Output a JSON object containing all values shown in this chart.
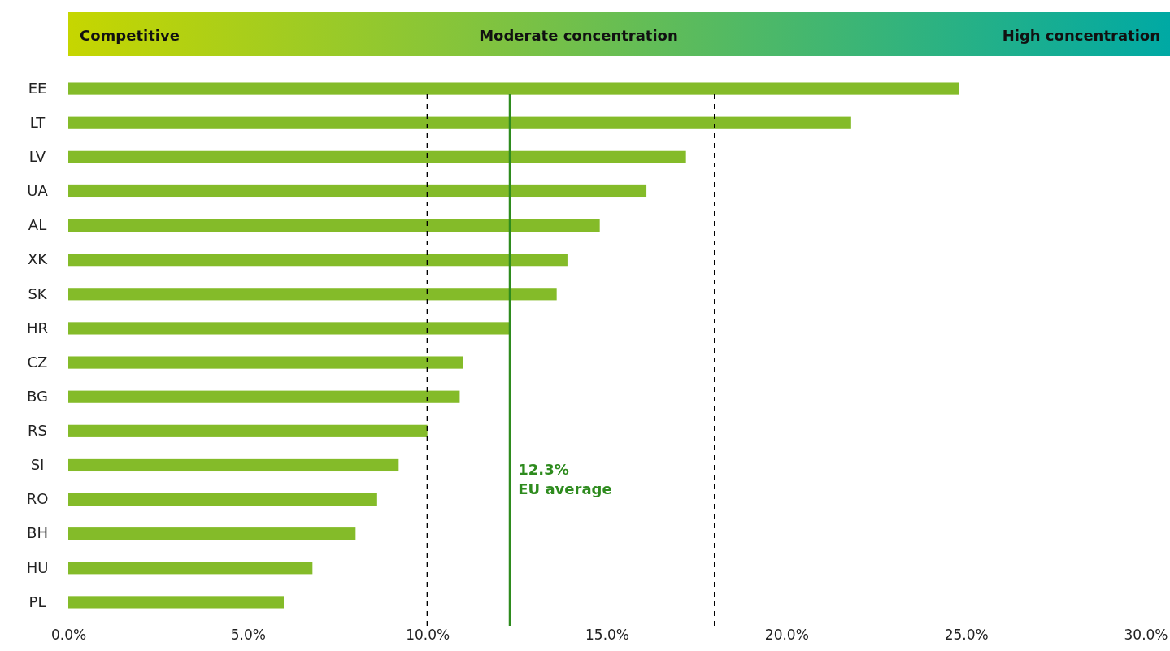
{
  "chart_data": {
    "type": "bar",
    "orientation": "horizontal",
    "categories": [
      "EE",
      "LT",
      "LV",
      "UA",
      "AL",
      "XK",
      "SK",
      "HR",
      "CZ",
      "BG",
      "RS",
      "SI",
      "RO",
      "BH",
      "HU",
      "PL"
    ],
    "values": [
      24.8,
      21.8,
      17.2,
      16.1,
      14.8,
      13.9,
      13.6,
      12.3,
      11.0,
      10.9,
      10.0,
      9.2,
      8.6,
      8.0,
      6.8,
      6.0
    ],
    "color": "#84bb29",
    "xlim": [
      0,
      30
    ],
    "xticks": [
      {
        "value": 0,
        "label": "0.0%"
      },
      {
        "value": 5,
        "label": "5.0%"
      },
      {
        "value": 10,
        "label": "10.0%"
      },
      {
        "value": 15,
        "label": "15.0%"
      },
      {
        "value": 20,
        "label": "20.0%"
      },
      {
        "value": 25,
        "label": "25.0%"
      },
      {
        "value": 30,
        "label": "30.0%"
      }
    ],
    "ref_lines": [
      {
        "axis": "x",
        "value": 10,
        "color": "#000000",
        "line_style": "dashed"
      },
      {
        "axis": "x",
        "value": 18,
        "color": "#000000",
        "line_style": "dashed"
      },
      {
        "axis": "x",
        "value": 12.3,
        "label": "12.3%\nEU average",
        "color": "#2e8b1e",
        "line_style": "solid"
      }
    ],
    "annotations": [
      "Competitive",
      "Moderate concentration",
      "High concentration"
    ],
    "grid": false
  }
}
